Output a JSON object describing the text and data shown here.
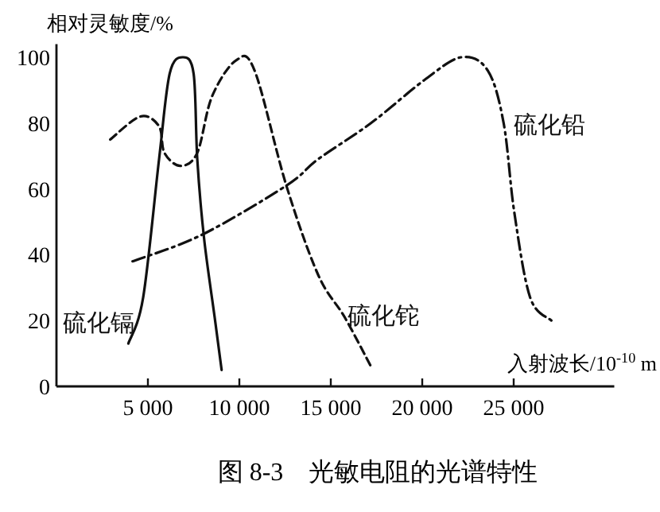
{
  "chart_data": {
    "type": "line",
    "ylabel": "相对灵敏度/%",
    "xlabel": "入射波长/10$^{-10}$ m",
    "xlim": [
      0,
      30500
    ],
    "ylim": [
      0,
      104
    ],
    "xticks": [
      {
        "value": 5000,
        "label": "5 000"
      },
      {
        "value": 10000,
        "label": "10 000"
      },
      {
        "value": 15000,
        "label": "15 000"
      },
      {
        "value": 20000,
        "label": "20 000"
      },
      {
        "value": 25000,
        "label": "25 000"
      }
    ],
    "yticks": [
      0,
      20,
      40,
      60,
      80,
      100
    ],
    "grid": false,
    "legend": false,
    "marker": "none",
    "series": [
      {
        "name": "硫化镉",
        "color": "#111111",
        "line_style": "solid",
        "x": [
          3930,
          4740,
          5610,
          6190,
          6910,
          7500,
          7700,
          8070,
          8650,
          9030
        ],
        "values": [
          13,
          27,
          69,
          95,
          100,
          95,
          69,
          45,
          21,
          5
        ]
      },
      {
        "name": "硫化铊",
        "color": "#111111",
        "line_style": "dashed",
        "x": [
          2940,
          4590,
          5610,
          5900,
          6770,
          7700,
          8500,
          9810,
          10830,
          12570,
          14300,
          15760,
          17200
        ],
        "values": [
          75,
          82,
          79,
          71,
          67,
          71,
          88,
          99,
          96,
          61,
          34,
          21,
          6
        ]
      },
      {
        "name": "硫化铅",
        "color": "#111111",
        "line_style": "dashdot",
        "x": [
          4160,
          7930,
          12570,
          14300,
          17200,
          20100,
          22130,
          23580,
          24450,
          25030,
          25900,
          27060
        ],
        "values": [
          38,
          46,
          61,
          69,
          80,
          93,
          100,
          96,
          80,
          53,
          27,
          20
        ]
      }
    ],
    "annotations": [
      "图 8-3　光敏电阻的光谱特性"
    ]
  }
}
